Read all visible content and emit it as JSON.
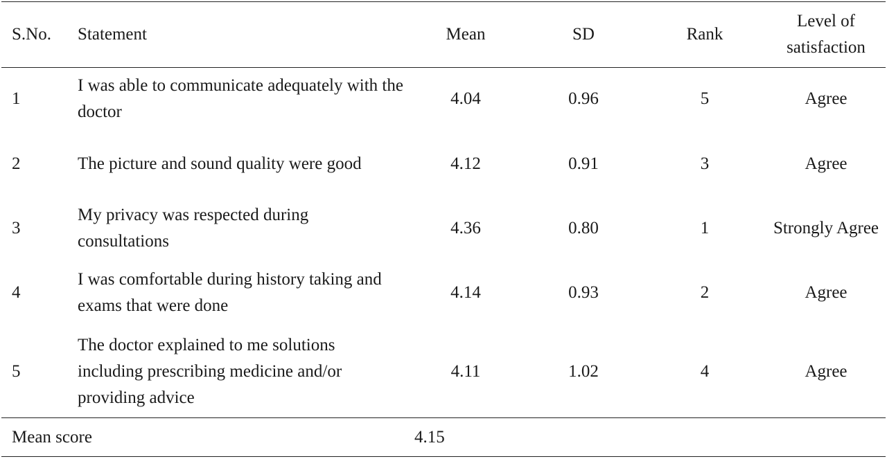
{
  "headers": {
    "sno": "S.No.",
    "statement": "Statement",
    "mean": "Mean",
    "sd": "SD",
    "rank": "Rank",
    "level": "Level of satisfaction"
  },
  "rows": [
    {
      "sno": "1",
      "statement": "I was able to communicate adequately with the doctor",
      "mean": "4.04",
      "sd": "0.96",
      "rank": "5",
      "level": "Agree"
    },
    {
      "sno": "2",
      "statement": "The picture and sound quality were good",
      "mean": "4.12",
      "sd": "0.91",
      "rank": "3",
      "level": "Agree"
    },
    {
      "sno": "3",
      "statement": "My privacy was respected during consultations",
      "mean": "4.36",
      "sd": "0.80",
      "rank": "1",
      "level": "Strongly Agree"
    },
    {
      "sno": "4",
      "statement": "I was comfortable during history taking and exams that were done",
      "mean": "4.14",
      "sd": "0.93",
      "rank": "2",
      "level": "Agree"
    },
    {
      "sno": "5",
      "statement": "The doctor explained to me solutions including prescribing medicine and/or providing advice",
      "mean": "4.11",
      "sd": "1.02",
      "rank": "4",
      "level": "Agree"
    }
  ],
  "footer": {
    "label": "Mean score",
    "value": "4.15"
  }
}
